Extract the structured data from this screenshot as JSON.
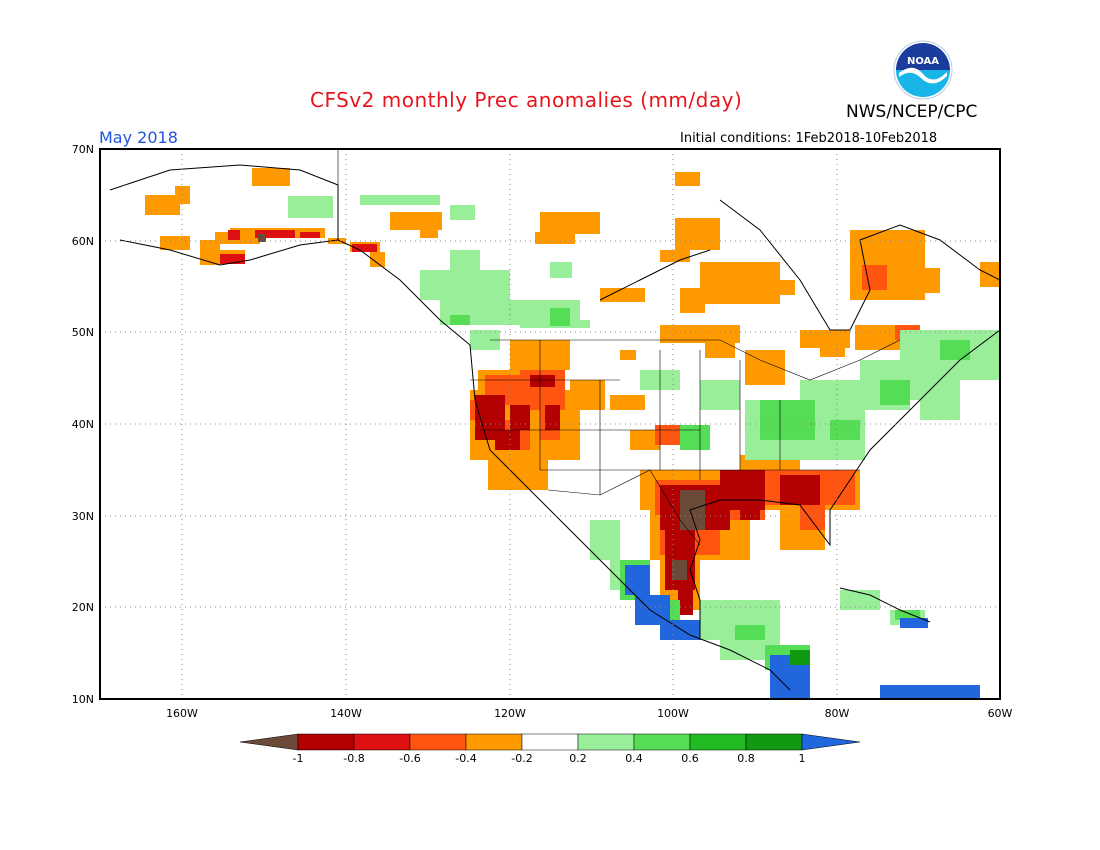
{
  "header": {
    "title": "CFSv2 monthly Prec anomalies (mm/day)",
    "valid_month": "May 2018",
    "agency": "NWS/NCEP/CPC",
    "initial_conditions": "Initial conditions: 1Feb2018-10Feb2018",
    "logo_text": "NOAA"
  },
  "map": {
    "lon_range": [
      -170,
      -60
    ],
    "lat_range": [
      10,
      70
    ],
    "lat_ticks": [
      "70N",
      "60N",
      "50N",
      "40N",
      "30N",
      "20N",
      "10N"
    ],
    "lon_ticks": [
      "160W",
      "140W",
      "120W",
      "100W",
      "80W",
      "60W"
    ],
    "grid_style": "dotted"
  },
  "colorbar": {
    "tick_labels": [
      "-1",
      "-0.8",
      "-0.6",
      "-0.4",
      "-0.2",
      "0.2",
      "0.4",
      "0.6",
      "0.8",
      "1"
    ],
    "colors": [
      "#6b4a3a",
      "#b30000",
      "#dd1111",
      "#ff5511",
      "#ff9900",
      "#ffffff",
      "#99ee99",
      "#55dd55",
      "#22bb22",
      "#119911",
      "#2266dd"
    ]
  }
}
